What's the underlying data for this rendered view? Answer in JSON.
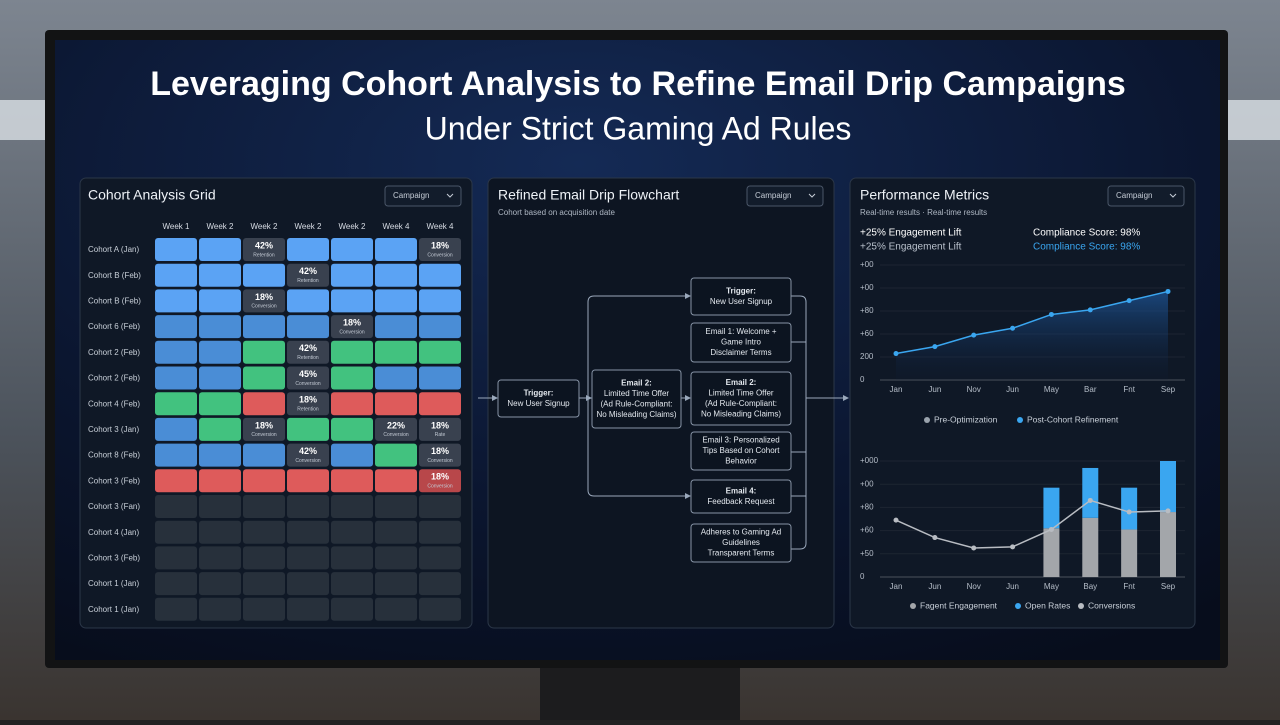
{
  "header": {
    "title": "Leveraging Cohort Analysis to Refine Email Drip Campaigns",
    "subtitle": "Under Strict Gaming Ad Rules"
  },
  "cohort": {
    "title": "Cohort Analysis Grid",
    "dropdown": "Campaign",
    "columns": [
      "Week 1",
      "Week 2",
      "Week 2",
      "Week 2",
      "Week 2",
      "Week 4",
      "Week 4"
    ],
    "palette": {
      "b": "#5ba3f4",
      "m": "#4a8dd6",
      "g": "#42c27f",
      "r": "#de5b5b",
      "d": "#39414f",
      "e": "#27303b",
      "x": "#b8474a"
    },
    "rows": [
      {
        "label": "Cohort A (Jan)",
        "cells": [
          {
            "color": "b"
          },
          {
            "color": "b"
          },
          {
            "color": "d",
            "value": "42%",
            "label": "Retention"
          },
          {
            "color": "b"
          },
          {
            "color": "b"
          },
          {
            "color": "b"
          },
          {
            "color": "d",
            "value": "18%",
            "label": "Conversion"
          }
        ]
      },
      {
        "label": "Cohort B (Feb)",
        "cells": [
          {
            "color": "b"
          },
          {
            "color": "b"
          },
          {
            "color": "b"
          },
          {
            "color": "d",
            "value": "42%",
            "label": "Retention"
          },
          {
            "color": "b"
          },
          {
            "color": "b"
          },
          {
            "color": "b"
          }
        ]
      },
      {
        "label": "Cohort B (Feb)",
        "cells": [
          {
            "color": "b"
          },
          {
            "color": "b"
          },
          {
            "color": "d",
            "value": "18%",
            "label": "Conversion"
          },
          {
            "color": "b"
          },
          {
            "color": "b"
          },
          {
            "color": "b"
          },
          {
            "color": "b"
          }
        ]
      },
      {
        "label": "Cohort 6 (Feb)",
        "cells": [
          {
            "color": "m"
          },
          {
            "color": "m"
          },
          {
            "color": "m"
          },
          {
            "color": "m"
          },
          {
            "color": "d",
            "value": "18%",
            "label": "Conversion"
          },
          {
            "color": "m"
          },
          {
            "color": "m"
          }
        ]
      },
      {
        "label": "Cohort 2 (Feb)",
        "cells": [
          {
            "color": "m"
          },
          {
            "color": "m"
          },
          {
            "color": "g"
          },
          {
            "color": "d",
            "value": "42%",
            "label": "Retention"
          },
          {
            "color": "g"
          },
          {
            "color": "g"
          },
          {
            "color": "g"
          }
        ]
      },
      {
        "label": "Cohort 2 (Feb)",
        "cells": [
          {
            "color": "m"
          },
          {
            "color": "m"
          },
          {
            "color": "g"
          },
          {
            "color": "d",
            "value": "45%",
            "label": "Conversion"
          },
          {
            "color": "g"
          },
          {
            "color": "m"
          },
          {
            "color": "m"
          }
        ]
      },
      {
        "label": "Cohort 4 (Feb)",
        "cells": [
          {
            "color": "g"
          },
          {
            "color": "g"
          },
          {
            "color": "r"
          },
          {
            "color": "d",
            "value": "18%",
            "label": "Retention"
          },
          {
            "color": "r"
          },
          {
            "color": "r"
          },
          {
            "color": "r"
          }
        ]
      },
      {
        "label": "Cohort 3 (Jan)",
        "cells": [
          {
            "color": "m"
          },
          {
            "color": "g"
          },
          {
            "color": "d",
            "value": "18%",
            "label": "Conversion"
          },
          {
            "color": "g"
          },
          {
            "color": "g"
          },
          {
            "color": "d",
            "value": "22%",
            "label": "Conversion"
          },
          {
            "color": "d",
            "value": "18%",
            "label": "Rate"
          }
        ]
      },
      {
        "label": "Cohort 8 (Feb)",
        "cells": [
          {
            "color": "m"
          },
          {
            "color": "m"
          },
          {
            "color": "m"
          },
          {
            "color": "d",
            "value": "42%",
            "label": "Conversion"
          },
          {
            "color": "m"
          },
          {
            "color": "g"
          },
          {
            "color": "d",
            "value": "18%",
            "label": "Conversion"
          }
        ]
      },
      {
        "label": "Cohort 3 (Feb)",
        "cells": [
          {
            "color": "r"
          },
          {
            "color": "r"
          },
          {
            "color": "r"
          },
          {
            "color": "r"
          },
          {
            "color": "r"
          },
          {
            "color": "r"
          },
          {
            "color": "x",
            "value": "18%",
            "label": "Conversion"
          }
        ]
      },
      {
        "label": "Cohort 3 (Fan)",
        "cells": [
          {
            "color": "e"
          },
          {
            "color": "e"
          },
          {
            "color": "e"
          },
          {
            "color": "e"
          },
          {
            "color": "e"
          },
          {
            "color": "e"
          },
          {
            "color": "e"
          }
        ]
      },
      {
        "label": "Cohort 4 (Jan)",
        "cells": [
          {
            "color": "e"
          },
          {
            "color": "e"
          },
          {
            "color": "e"
          },
          {
            "color": "e"
          },
          {
            "color": "e"
          },
          {
            "color": "e"
          },
          {
            "color": "e"
          }
        ]
      },
      {
        "label": "Cohort 3 (Feb)",
        "cells": [
          {
            "color": "e"
          },
          {
            "color": "e"
          },
          {
            "color": "e"
          },
          {
            "color": "e"
          },
          {
            "color": "e"
          },
          {
            "color": "e"
          },
          {
            "color": "e"
          }
        ]
      },
      {
        "label": "Cohort 1 (Jan)",
        "cells": [
          {
            "color": "e"
          },
          {
            "color": "e"
          },
          {
            "color": "e"
          },
          {
            "color": "e"
          },
          {
            "color": "e"
          },
          {
            "color": "e"
          },
          {
            "color": "e"
          }
        ]
      },
      {
        "label": "Cohort 1 (Jan)",
        "cells": [
          {
            "color": "e"
          },
          {
            "color": "e"
          },
          {
            "color": "e"
          },
          {
            "color": "e"
          },
          {
            "color": "e"
          },
          {
            "color": "e"
          },
          {
            "color": "e"
          }
        ]
      }
    ]
  },
  "flow": {
    "title": "Refined Email Drip Flowchart",
    "subtitle": "Cohort based on acquisition date",
    "dropdown": "Campaign",
    "nodes": [
      {
        "lines": [
          "Trigger:",
          "New User Signup"
        ]
      },
      {
        "lines": [
          "Email 1: Welcome +",
          "Game Intro",
          "Disclaimer Terms"
        ]
      },
      {
        "lines": [
          "Email 2:",
          "Limited Time Offer",
          "(Ad Rule-Compliant:",
          "No Misleading Claims)"
        ]
      },
      {
        "lines": [
          "Email 3: Personalized",
          "Tips Based on Cohort",
          "Behavior"
        ]
      },
      {
        "lines": [
          "Email 4:",
          "Feedback Request"
        ]
      },
      {
        "lines": [
          "Adheres to Gaming Ad",
          "Guidelines",
          "Transparent Terms"
        ]
      },
      {
        "lines": [
          "Trigger:",
          "New User Signup"
        ]
      },
      {
        "lines": [
          "Email 2:",
          "Limited Time Offer",
          "(Ad Rule-Compliant:",
          "No Misleading Claims)"
        ]
      }
    ]
  },
  "metrics": {
    "title": "Performance Metrics",
    "dropdown": "Campaign",
    "subtitle": "Real-time results · Real-time results",
    "stats": [
      "+25% Engagement Lift",
      "+25% Engagement Lift",
      "Compliance Score: 98%",
      "Compliance Score: 98%"
    ],
    "charts": [
      {
        "type": "line",
        "categories": [
          "Jan",
          "Jun",
          "Nov",
          "Jun",
          "May",
          "Bar",
          "Fnt",
          "Sep"
        ],
        "ylim": [
          0,
          100
        ],
        "yticks": [
          0,
          {
            "value": 20,
            "label": "200"
          },
          {
            "value": 40,
            "label": "+60"
          },
          {
            "value": 60,
            "label": "+80"
          },
          {
            "value": 80,
            "label": "+00"
          },
          {
            "value": 100,
            "label": "+00"
          }
        ],
        "series": [
          {
            "name": "Pre-Optimization",
            "color": "#9aa3ad",
            "values": [
              null,
              null,
              null,
              null,
              null,
              null,
              null,
              null
            ]
          },
          {
            "name": "Post-Cohort Refinement",
            "color": "#3aa6f0",
            "values": [
              23,
              29,
              39,
              45,
              57,
              61,
              69,
              77
            ]
          }
        ]
      },
      {
        "type": "combo",
        "categories": [
          "Jan",
          "Jun",
          "Nov",
          "Jun",
          "May",
          "Bay",
          "Fnt",
          "Sep"
        ],
        "ylim": [
          0,
          100
        ],
        "yticks": [
          0,
          {
            "value": 20,
            "label": "+50"
          },
          {
            "value": 40,
            "label": "+60"
          },
          {
            "value": 60,
            "label": "+80"
          },
          {
            "value": 80,
            "label": "+00"
          },
          {
            "value": 100,
            "label": "+000"
          }
        ],
        "series": [
          {
            "name": "Fagent Engagement",
            "color": "#a3a6aa",
            "kind": "bar",
            "values": [
              null,
              null,
              null,
              null,
              42,
              51,
              41,
              56
            ]
          },
          {
            "name": "Open Rates",
            "color": "#3aa6f0",
            "kind": "bar",
            "values": [
              null,
              null,
              null,
              null,
              35,
              43,
              36,
              44
            ]
          },
          {
            "name": "Conversions",
            "color": "#b8bcc2",
            "kind": "line",
            "values": [
              49,
              34,
              25,
              26,
              41,
              66,
              56,
              57
            ]
          }
        ]
      }
    ]
  }
}
